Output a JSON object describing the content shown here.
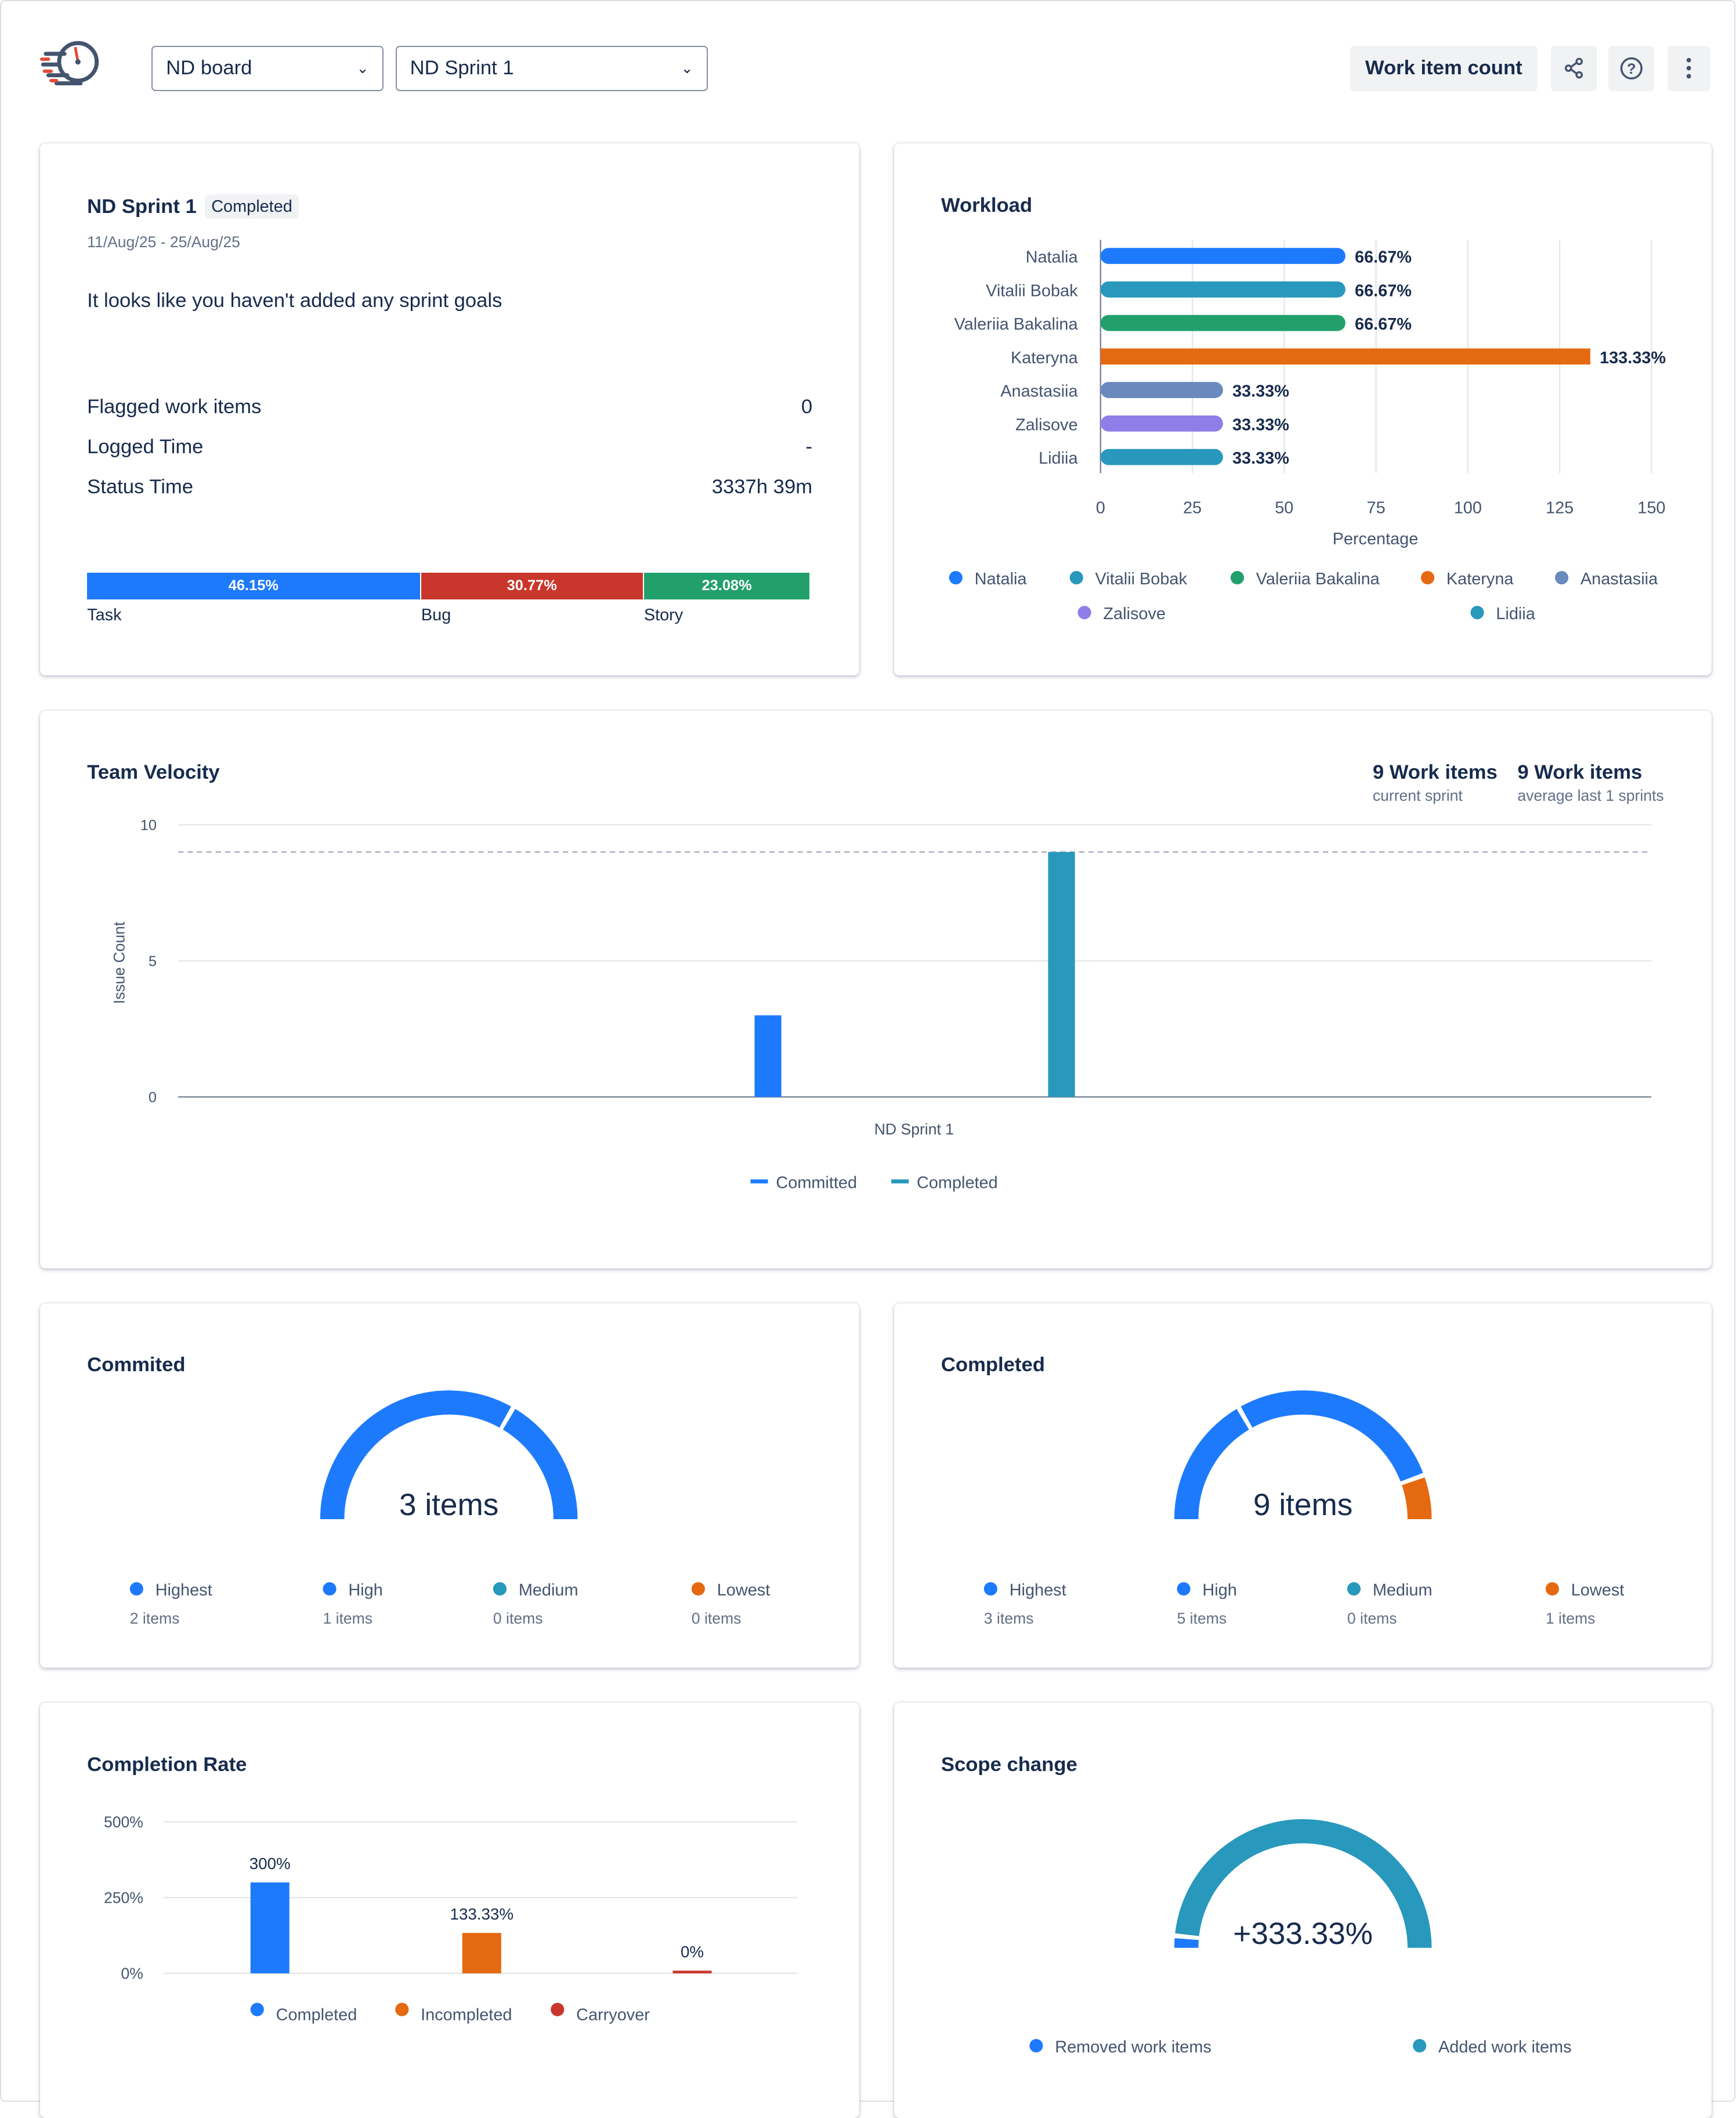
{
  "header": {
    "board_select": "ND board",
    "sprint_select": "ND Sprint 1",
    "work_item_count_button": "Work item count",
    "icons": [
      "share-icon",
      "help-icon",
      "more-icon"
    ]
  },
  "colors": {
    "blue": "#1d7afc",
    "teal": "#2898bd",
    "green": "#22a06b",
    "orange": "#e56910",
    "slate": "#6a89bd",
    "purple": "#8f7ee7",
    "red": "#c9372c"
  },
  "sprint_card": {
    "title": "ND Sprint 1",
    "status": "Completed",
    "dates": "11/Aug/25 - 25/Aug/25",
    "goals_text": "It looks like you haven't added any sprint goals",
    "stats": [
      {
        "label": "Flagged work items",
        "value": "0"
      },
      {
        "label": "Logged Time",
        "value": "-"
      },
      {
        "label": "Status Time",
        "value": "3337h 39m"
      }
    ],
    "type_breakdown": [
      {
        "label": "Task",
        "percent": 46.15,
        "text": "46.15%",
        "color": "#1d7afc"
      },
      {
        "label": "Bug",
        "percent": 30.77,
        "text": "30.77%",
        "color": "#c9372c"
      },
      {
        "label": "Story",
        "percent": 23.08,
        "text": "23.08%",
        "color": "#22a06b"
      }
    ]
  },
  "chart_data": [
    {
      "type": "bar",
      "orientation": "horizontal",
      "title": "Workload",
      "xlabel": "Percentage",
      "xlim": [
        0,
        150
      ],
      "xticks": [
        0,
        25,
        50,
        75,
        100,
        125,
        150
      ],
      "grid": true,
      "legend": "bottom",
      "categories": [
        "Natalia",
        "Vitalii Bobak",
        "Valeriia Bakalina",
        "Kateryna",
        "Anastasiia",
        "Zalisove",
        "Lidiia"
      ],
      "values": [
        66.67,
        66.67,
        66.67,
        133.33,
        33.33,
        33.33,
        33.33
      ],
      "labels": [
        "66.67%",
        "66.67%",
        "66.67%",
        "133.33%",
        "33.33%",
        "33.33%",
        "33.33%"
      ],
      "colors": [
        "#1d7afc",
        "#2898bd",
        "#22a06b",
        "#e56910",
        "#6a89bd",
        "#8f7ee7",
        "#2898bd"
      ]
    },
    {
      "type": "bar",
      "title": "Team Velocity",
      "ylabel": "Issue Count",
      "ylim": [
        0,
        10
      ],
      "yticks": [
        0,
        5,
        10
      ],
      "categories": [
        "ND Sprint 1"
      ],
      "average_line": 9,
      "legend": "bottom",
      "series": [
        {
          "name": "Committed",
          "values": [
            3
          ],
          "color": "#1d7afc"
        },
        {
          "name": "Completed",
          "values": [
            9
          ],
          "color": "#2898bd"
        }
      ],
      "summary": [
        {
          "value": "9 Work items",
          "caption": "current sprint"
        },
        {
          "value": "9 Work items",
          "caption": "average last 1 sprints"
        }
      ]
    },
    {
      "type": "pie",
      "variant": "semi-donut",
      "title": "Commited",
      "center_label": "3 items",
      "slices": [
        {
          "name": "Highest",
          "value": 2,
          "caption": "2 items",
          "color": "#1d7afc"
        },
        {
          "name": "High",
          "value": 1,
          "caption": "1 items",
          "color": "#1d7afc"
        },
        {
          "name": "Medium",
          "value": 0,
          "caption": "0 items",
          "color": "#2898bd"
        },
        {
          "name": "Lowest",
          "value": 0,
          "caption": "0 items",
          "color": "#e56910"
        }
      ]
    },
    {
      "type": "pie",
      "variant": "semi-donut",
      "title": "Completed",
      "center_label": "9 items",
      "slices": [
        {
          "name": "Highest",
          "value": 3,
          "caption": "3 items",
          "color": "#1d7afc"
        },
        {
          "name": "High",
          "value": 5,
          "caption": "5 items",
          "color": "#1d7afc"
        },
        {
          "name": "Medium",
          "value": 0,
          "caption": "0 items",
          "color": "#2898bd"
        },
        {
          "name": "Lowest",
          "value": 1,
          "caption": "1 items",
          "color": "#e56910"
        }
      ]
    },
    {
      "type": "bar",
      "title": "Completion Rate",
      "ylim": [
        0,
        500
      ],
      "yticks": [
        "0%",
        "250%",
        "500%"
      ],
      "legend": "bottom",
      "categories": [
        "Completed",
        "Incompleted",
        "Carryover"
      ],
      "values": [
        300,
        133.33,
        0
      ],
      "labels": [
        "300%",
        "133.33%",
        "0%"
      ],
      "colors": [
        "#1d7afc",
        "#e56910",
        "#c9372c"
      ]
    },
    {
      "type": "pie",
      "variant": "semi-donut",
      "title": "Scope change",
      "center_label": "+333.33%",
      "slices": [
        {
          "name": "Removed work items",
          "value": 3,
          "color": "#1d7afc"
        },
        {
          "name": "Added work items",
          "value": 97,
          "color": "#2898bd"
        }
      ]
    }
  ]
}
